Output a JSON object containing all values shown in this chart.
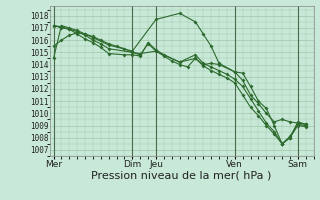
{
  "background_color": "#c8e8d8",
  "grid_color": "#a0c8a8",
  "line_color": "#2d6a2d",
  "marker_color": "#2d6a2d",
  "ylim": [
    1006.5,
    1018.8
  ],
  "yticks": [
    1007,
    1008,
    1009,
    1010,
    1011,
    1012,
    1013,
    1014,
    1015,
    1016,
    1017,
    1018
  ],
  "xlabel": "Pression niveau de la mer( hPa )",
  "xlabel_fontsize": 8,
  "day_labels": [
    "Mer",
    "Dim",
    "Jeu",
    "Ven",
    "Sam"
  ],
  "day_positions": [
    0,
    100,
    130,
    230,
    310
  ],
  "xlim": [
    -5,
    330
  ],
  "series": [
    [
      0,
      1014.5,
      10,
      1017.2,
      20,
      1017.0,
      30,
      1016.8,
      40,
      1016.5,
      50,
      1016.2,
      70,
      1015.6,
      100,
      1015.1,
      130,
      1017.7,
      160,
      1018.2,
      180,
      1017.5,
      190,
      1016.5,
      200,
      1015.5,
      210,
      1014.1,
      230,
      1013.4,
      240,
      1013.3,
      250,
      1012.2,
      260,
      1011.0,
      270,
      1010.4,
      280,
      1009.0,
      290,
      1007.5,
      300,
      1008.0,
      310,
      1009.3,
      320,
      1009.1
    ],
    [
      0,
      1017.2,
      10,
      1017.1,
      20,
      1016.9,
      30,
      1016.7,
      40,
      1016.4,
      50,
      1016.0,
      60,
      1015.7,
      70,
      1015.3,
      100,
      1015.0,
      110,
      1014.9,
      130,
      1015.1,
      160,
      1014.2,
      180,
      1014.5,
      190,
      1014.0,
      200,
      1014.1,
      210,
      1014.0,
      230,
      1013.4,
      240,
      1012.7,
      250,
      1011.5,
      260,
      1010.8,
      270,
      1010.0,
      280,
      1009.3,
      290,
      1009.5,
      300,
      1009.3,
      310,
      1009.2,
      320,
      1009.1
    ],
    [
      0,
      1017.2,
      10,
      1017.0,
      20,
      1016.9,
      30,
      1016.5,
      40,
      1016.1,
      50,
      1015.8,
      60,
      1015.4,
      70,
      1014.9,
      90,
      1014.8,
      100,
      1014.8,
      110,
      1014.7,
      120,
      1015.8,
      130,
      1015.2,
      140,
      1014.8,
      160,
      1014.2,
      180,
      1014.8,
      190,
      1014.1,
      200,
      1013.8,
      210,
      1013.5,
      220,
      1013.2,
      230,
      1012.8,
      240,
      1012.2,
      250,
      1011.2,
      260,
      1010.2,
      270,
      1009.2,
      280,
      1008.5,
      290,
      1007.5,
      300,
      1008.1,
      310,
      1009.1,
      320,
      1009.0
    ],
    [
      0,
      1015.5,
      10,
      1016.0,
      20,
      1016.4,
      30,
      1016.6,
      40,
      1016.5,
      50,
      1016.3,
      60,
      1016.0,
      70,
      1015.7,
      80,
      1015.5,
      90,
      1015.3,
      100,
      1015.0,
      110,
      1014.8,
      120,
      1015.7,
      130,
      1015.1,
      140,
      1014.7,
      150,
      1014.3,
      160,
      1014.0,
      170,
      1013.8,
      180,
      1014.5,
      190,
      1013.9,
      200,
      1013.5,
      210,
      1013.2,
      220,
      1012.9,
      230,
      1012.5,
      240,
      1011.5,
      250,
      1010.5,
      260,
      1009.8,
      270,
      1009.0,
      280,
      1008.3,
      290,
      1007.5,
      300,
      1008.0,
      310,
      1009.0,
      320,
      1008.9
    ]
  ],
  "vline_positions": [
    0,
    100,
    130,
    230,
    310
  ],
  "vline_color": "#4a6a4a"
}
